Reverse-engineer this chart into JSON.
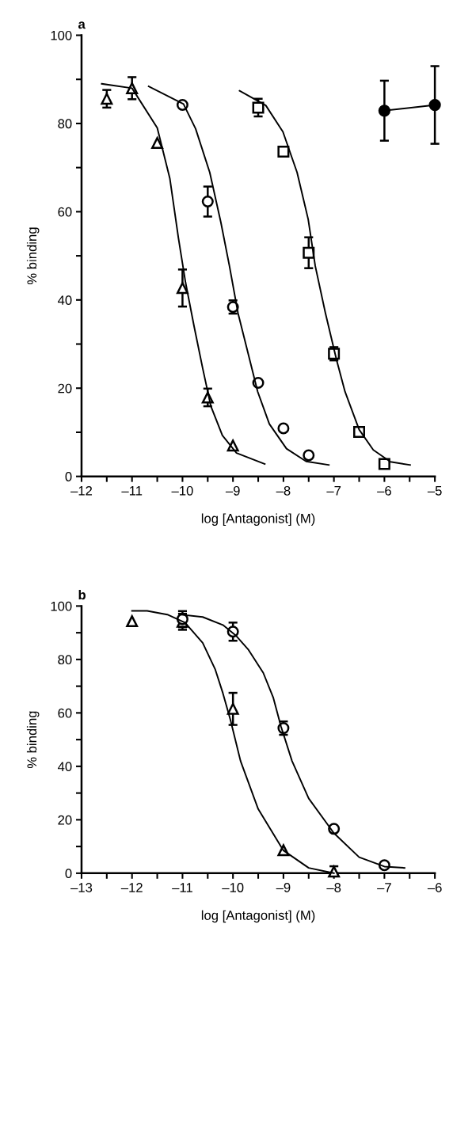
{
  "chart_data": [
    {
      "type": "scatter",
      "title": "a",
      "xlabel": "log [Antagonist] (M)",
      "ylabel": "% binding",
      "xlim": [
        -12,
        -5
      ],
      "ylim": [
        0,
        100
      ],
      "xticks": [
        {
          "value": -12,
          "label": "–12"
        },
        {
          "value": -11.5,
          "label": null
        },
        {
          "value": -11,
          "label": "–11"
        },
        {
          "value": -10.5,
          "label": null
        },
        {
          "value": -10,
          "label": "–10"
        },
        {
          "value": -9.5,
          "label": null
        },
        {
          "value": -9,
          "label": "–9"
        },
        {
          "value": -8.5,
          "label": null
        },
        {
          "value": -8,
          "label": "–8"
        },
        {
          "value": -7.5,
          "label": null
        },
        {
          "value": -7,
          "label": "–7"
        },
        {
          "value": -6.5,
          "label": null
        },
        {
          "value": -6,
          "label": "–6"
        },
        {
          "value": -5.5,
          "label": null
        },
        {
          "value": -5,
          "label": "–5"
        }
      ],
      "yticks": [
        0,
        {
          "value": 10,
          "label": null
        },
        20,
        {
          "value": 30,
          "label": null
        },
        40,
        {
          "value": 50,
          "label": null
        },
        60,
        {
          "value": 70,
          "label": null
        },
        80,
        {
          "value": 90,
          "label": null
        },
        100
      ],
      "grid": false,
      "legend": false,
      "series": [
        {
          "type": "scatter",
          "marker": "triangle",
          "color": "#000000",
          "x": [
            -11.5,
            -11,
            -10.5,
            -10,
            -9.5,
            -9
          ],
          "values": [
            85.6,
            88,
            75.6,
            42.7,
            17.9,
            7.0
          ],
          "errors": [
            2,
            2.5,
            null,
            4.2,
            2,
            null
          ]
        },
        {
          "type": "scatter",
          "marker": "circle",
          "color": "#000000",
          "x": [
            -10,
            -9.5,
            -9,
            -8.5,
            -8,
            -7.5
          ],
          "values": [
            84.2,
            62.3,
            38.4,
            21.2,
            10.9,
            4.8
          ],
          "errors": [
            null,
            3.4,
            1.5,
            null,
            null,
            null
          ]
        },
        {
          "type": "scatter",
          "marker": "square",
          "color": "#000000",
          "x": [
            -8.5,
            -8,
            -7.5,
            -7,
            -6.5,
            -6
          ],
          "values": [
            83.6,
            73.6,
            50.7,
            27.8,
            10.1,
            2.8
          ],
          "errors": [
            2,
            null,
            3.5,
            1.5,
            null,
            null
          ]
        },
        {
          "type": "line",
          "marker": "circle",
          "color": "#000000",
          "x": [
            -6,
            -5
          ],
          "values": [
            82.9,
            84.2
          ],
          "errors": [
            6.8,
            8.8
          ]
        },
        {
          "type": "line",
          "marker": "none",
          "color": "#000000",
          "x": [
            -11.6,
            -11,
            -10.5,
            -10.25,
            -10.08,
            -9.94,
            -9.77,
            -9.6,
            -9.44,
            -9.21,
            -8.93,
            -8.37
          ],
          "values": [
            89,
            88,
            79,
            67.5,
            54,
            44,
            34,
            24.5,
            16,
            9.3,
            5.3,
            2.8
          ]
        },
        {
          "type": "line",
          "marker": "none",
          "color": "#000000",
          "x": [
            -10.67,
            -9.98,
            -9.74,
            -9.46,
            -9.24,
            -9.07,
            -8.9,
            -8.67,
            -8.51,
            -8.28,
            -7.94,
            -7.55,
            -7.1
          ],
          "values": [
            88.4,
            84.4,
            78.8,
            68.9,
            57.6,
            47.7,
            37,
            26.5,
            19.2,
            11.9,
            6.3,
            3.4,
            2.6
          ]
        },
        {
          "type": "line",
          "marker": "none",
          "color": "#000000",
          "x": [
            -8.87,
            -8.35,
            -8.01,
            -7.73,
            -7.51,
            -7.37,
            -7.17,
            -6.95,
            -6.78,
            -6.5,
            -6.22,
            -5.88,
            -5.49
          ],
          "values": [
            87.4,
            84.1,
            78.1,
            68.9,
            58.3,
            47.7,
            37.1,
            26.5,
            19.2,
            10.6,
            6,
            3.3,
            2.6
          ]
        }
      ]
    },
    {
      "type": "scatter",
      "title": "b",
      "xlabel": "log [Antagonist] (M)",
      "ylabel": "% binding",
      "xlim": [
        -13,
        -6
      ],
      "ylim": [
        0,
        100
      ],
      "xticks": [
        {
          "value": -13,
          "label": "–13"
        },
        {
          "value": -12.5,
          "label": null
        },
        {
          "value": -12,
          "label": "–12"
        },
        {
          "value": -11.5,
          "label": null
        },
        {
          "value": -11,
          "label": "–11"
        },
        {
          "value": -10.5,
          "label": null
        },
        {
          "value": -10,
          "label": "–10"
        },
        {
          "value": -9.5,
          "label": null
        },
        {
          "value": -9,
          "label": "–9"
        },
        {
          "value": -8.5,
          "label": null
        },
        {
          "value": -8,
          "label": "–8"
        },
        {
          "value": -7.5,
          "label": null
        },
        {
          "value": -7,
          "label": "–7"
        },
        {
          "value": -6.5,
          "label": null
        },
        {
          "value": -6,
          "label": "–6"
        }
      ],
      "yticks": [
        0,
        {
          "value": 10,
          "label": null
        },
        20,
        {
          "value": 30,
          "label": null
        },
        40,
        {
          "value": 50,
          "label": null
        },
        60,
        {
          "value": 70,
          "label": null
        },
        80,
        {
          "value": 90,
          "label": null
        },
        100
      ],
      "grid": false,
      "legend": false,
      "series": [
        {
          "type": "scatter",
          "marker": "triangle",
          "color": "#000000",
          "x": [
            -12,
            -11,
            -10,
            -9,
            -8
          ],
          "values": [
            94.3,
            94.1,
            61.5,
            8.6,
            0.6
          ],
          "errors": [
            null,
            3,
            6,
            null,
            [
              0,
              2.6
            ]
          ]
        },
        {
          "type": "scatter",
          "marker": "circle",
          "color": "#000000",
          "x": [
            -11,
            -10,
            -9,
            -8,
            -7
          ],
          "values": [
            95.1,
            90.4,
            54.3,
            16.6,
            3
          ],
          "errors": [
            3,
            3.4,
            2.5,
            null,
            null
          ]
        },
        {
          "type": "line",
          "marker": "none",
          "color": "#000000",
          "x": [
            -12,
            -11.7,
            -11.3,
            -10.95,
            -10.6,
            -10.35,
            -10.2,
            -10.05,
            -9.85,
            -9.5,
            -9,
            -8.5,
            -8
          ],
          "values": [
            98.2,
            98.2,
            96.8,
            93.8,
            86.2,
            76.2,
            67.4,
            57.4,
            42,
            24,
            8.5,
            2,
            0
          ]
        },
        {
          "type": "line",
          "marker": "none",
          "color": "#000000",
          "x": [
            -11.04,
            -10.6,
            -10.2,
            -9.95,
            -9.7,
            -9.4,
            -9.2,
            -9.05,
            -8.83,
            -8.5,
            -8,
            -7.5,
            -7,
            -6.6
          ],
          "values": [
            96.8,
            95.9,
            92.9,
            89.1,
            83.8,
            75,
            65.6,
            55,
            42,
            28,
            15,
            6,
            2.5,
            2
          ]
        }
      ]
    }
  ]
}
